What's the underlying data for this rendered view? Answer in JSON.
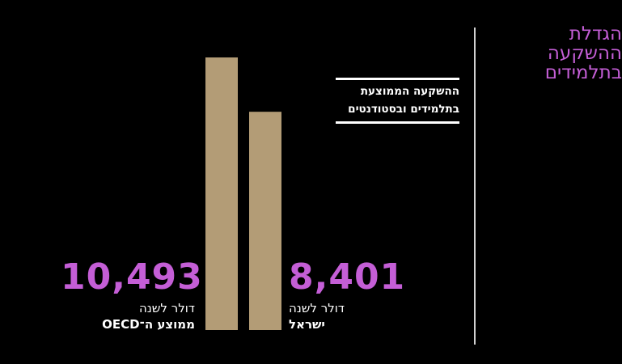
{
  "section_title": "הגדלת ההשקעה בתלמידים",
  "chart_data": {
    "type": "bar",
    "title": "ההשקעה הממוצעת בתלמידים ובסטודנטים",
    "categories": [
      "ממוצע ה־OECD",
      "ישראל"
    ],
    "values": [
      10493,
      8401
    ],
    "value_labels": [
      "10,493",
      "8,401"
    ],
    "unit_label": "דולר לשנה",
    "bar_color": "#b39c76"
  },
  "colors": {
    "accent": "#c45ed6",
    "bar": "#b39c76",
    "background": "#000000"
  }
}
